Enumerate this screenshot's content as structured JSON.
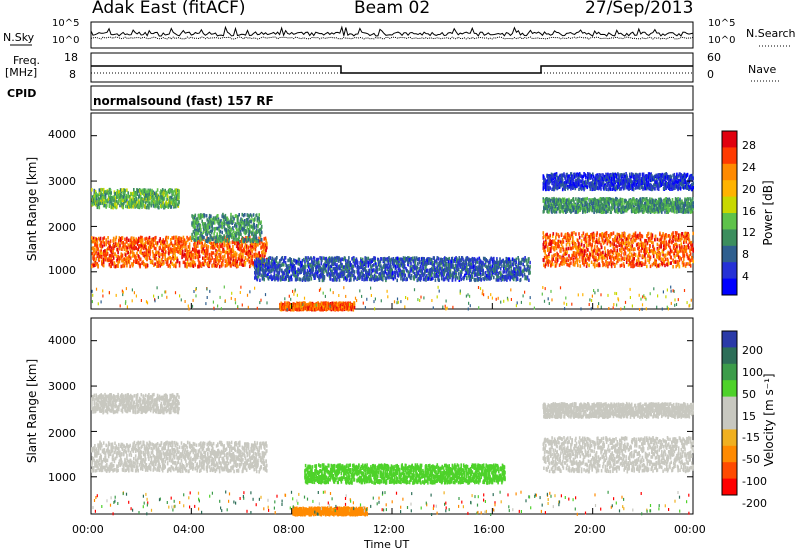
{
  "header": {
    "station": "Adak East (fitACF)",
    "beam": "Beam 02",
    "date": "27/Sep/2013"
  },
  "left_labels": {
    "nsky": "N.Sky",
    "freq_line1": "Freq.",
    "freq_line2": "[MHz]",
    "cpid": "CPID"
  },
  "right_labels": {
    "nsearch": "N.Search",
    "nave": "Nave"
  },
  "noise_panel": {
    "left_ticks": [
      "10^5",
      "10^0"
    ],
    "right_ticks": [
      "10^5",
      "10^0"
    ]
  },
  "freq_panel": {
    "left_ticks": [
      "18",
      "8"
    ],
    "right_ticks": [
      "60",
      "0"
    ]
  },
  "cpid_text": "normalsound (fast) 157 RF",
  "power_colorbar": {
    "label": "Power [dB]",
    "ticks": [
      "28",
      "24",
      "20",
      "16",
      "12",
      "8",
      "4"
    ],
    "colors": [
      "#e0000e",
      "#ff3a00",
      "#ff8a00",
      "#ffb300",
      "#c8d800",
      "#5ec24a",
      "#3c8e5e",
      "#2f5f8f",
      "#2631d6",
      "#0000ff"
    ]
  },
  "velocity_colorbar": {
    "label": "Velocity [m s⁻¹]",
    "ticks": [
      "200",
      "100",
      "50",
      "15",
      "-15",
      "-50",
      "-100",
      "-200"
    ],
    "colors": [
      "#2a3aa8",
      "#2d6e58",
      "#3c9c4a",
      "#4ed22a",
      "#c8c8c0",
      "#c8c8c0",
      "#f0b020",
      "#ff8a00",
      "#ff4a00",
      "#ff0000"
    ]
  },
  "chart_data": [
    {
      "type": "heatmap",
      "title": "Power",
      "ylabel": "Slant Range [km]",
      "y_ticks": [
        "4000",
        "3000",
        "2000",
        "1000"
      ],
      "ylim": [
        180,
        4500
      ],
      "x_ticks": [
        "00:00",
        "04:00",
        "08:00",
        "12:00",
        "16:00",
        "20:00",
        "00:00"
      ],
      "xlabel": "Time UT",
      "colorbar_label": "Power [dB]",
      "echo_bands": [
        {
          "t_start": 0.0,
          "t_end": 7.0,
          "range_low": 1150,
          "range_high": 1800,
          "value": 26
        },
        {
          "t_start": 0.0,
          "t_end": 3.5,
          "range_low": 2450,
          "range_high": 2850,
          "value": 14
        },
        {
          "t_start": 4.0,
          "t_end": 6.8,
          "range_low": 1700,
          "range_high": 2300,
          "value": 12
        },
        {
          "t_start": 6.5,
          "t_end": 17.5,
          "range_low": 850,
          "range_high": 1350,
          "value": 8
        },
        {
          "t_start": 7.5,
          "t_end": 10.5,
          "range_low": 200,
          "range_high": 350,
          "value": 26
        },
        {
          "t_start": 18.0,
          "t_end": 24.0,
          "range_low": 1150,
          "range_high": 1900,
          "value": 26
        },
        {
          "t_start": 18.0,
          "t_end": 24.0,
          "range_low": 2350,
          "range_high": 2650,
          "value": 12
        },
        {
          "t_start": 18.0,
          "t_end": 24.0,
          "range_low": 2850,
          "range_high": 3200,
          "value": 6
        }
      ]
    },
    {
      "type": "heatmap",
      "title": "Velocity",
      "ylabel": "Slant Range [km]",
      "y_ticks": [
        "4000",
        "3000",
        "2000",
        "1000"
      ],
      "ylim": [
        180,
        4500
      ],
      "x_ticks": [
        "00:00",
        "04:00",
        "08:00",
        "12:00",
        "16:00",
        "20:00",
        "00:00"
      ],
      "xlabel": "Time UT",
      "colorbar_label": "Velocity [m s⁻¹]",
      "echo_bands": [
        {
          "t_start": 0.0,
          "t_end": 7.0,
          "range_low": 1150,
          "range_high": 1800,
          "value": 0
        },
        {
          "t_start": 0.0,
          "t_end": 3.5,
          "range_low": 2450,
          "range_high": 2850,
          "value": 0
        },
        {
          "t_start": 8.5,
          "t_end": 16.5,
          "range_low": 900,
          "range_high": 1300,
          "value": 40
        },
        {
          "t_start": 8.0,
          "t_end": 11.0,
          "range_low": 200,
          "range_high": 350,
          "value": -60
        },
        {
          "t_start": 18.0,
          "t_end": 24.0,
          "range_low": 1150,
          "range_high": 1900,
          "value": 0
        },
        {
          "t_start": 18.0,
          "t_end": 24.0,
          "range_low": 2350,
          "range_high": 2650,
          "value": 0
        }
      ]
    }
  ]
}
